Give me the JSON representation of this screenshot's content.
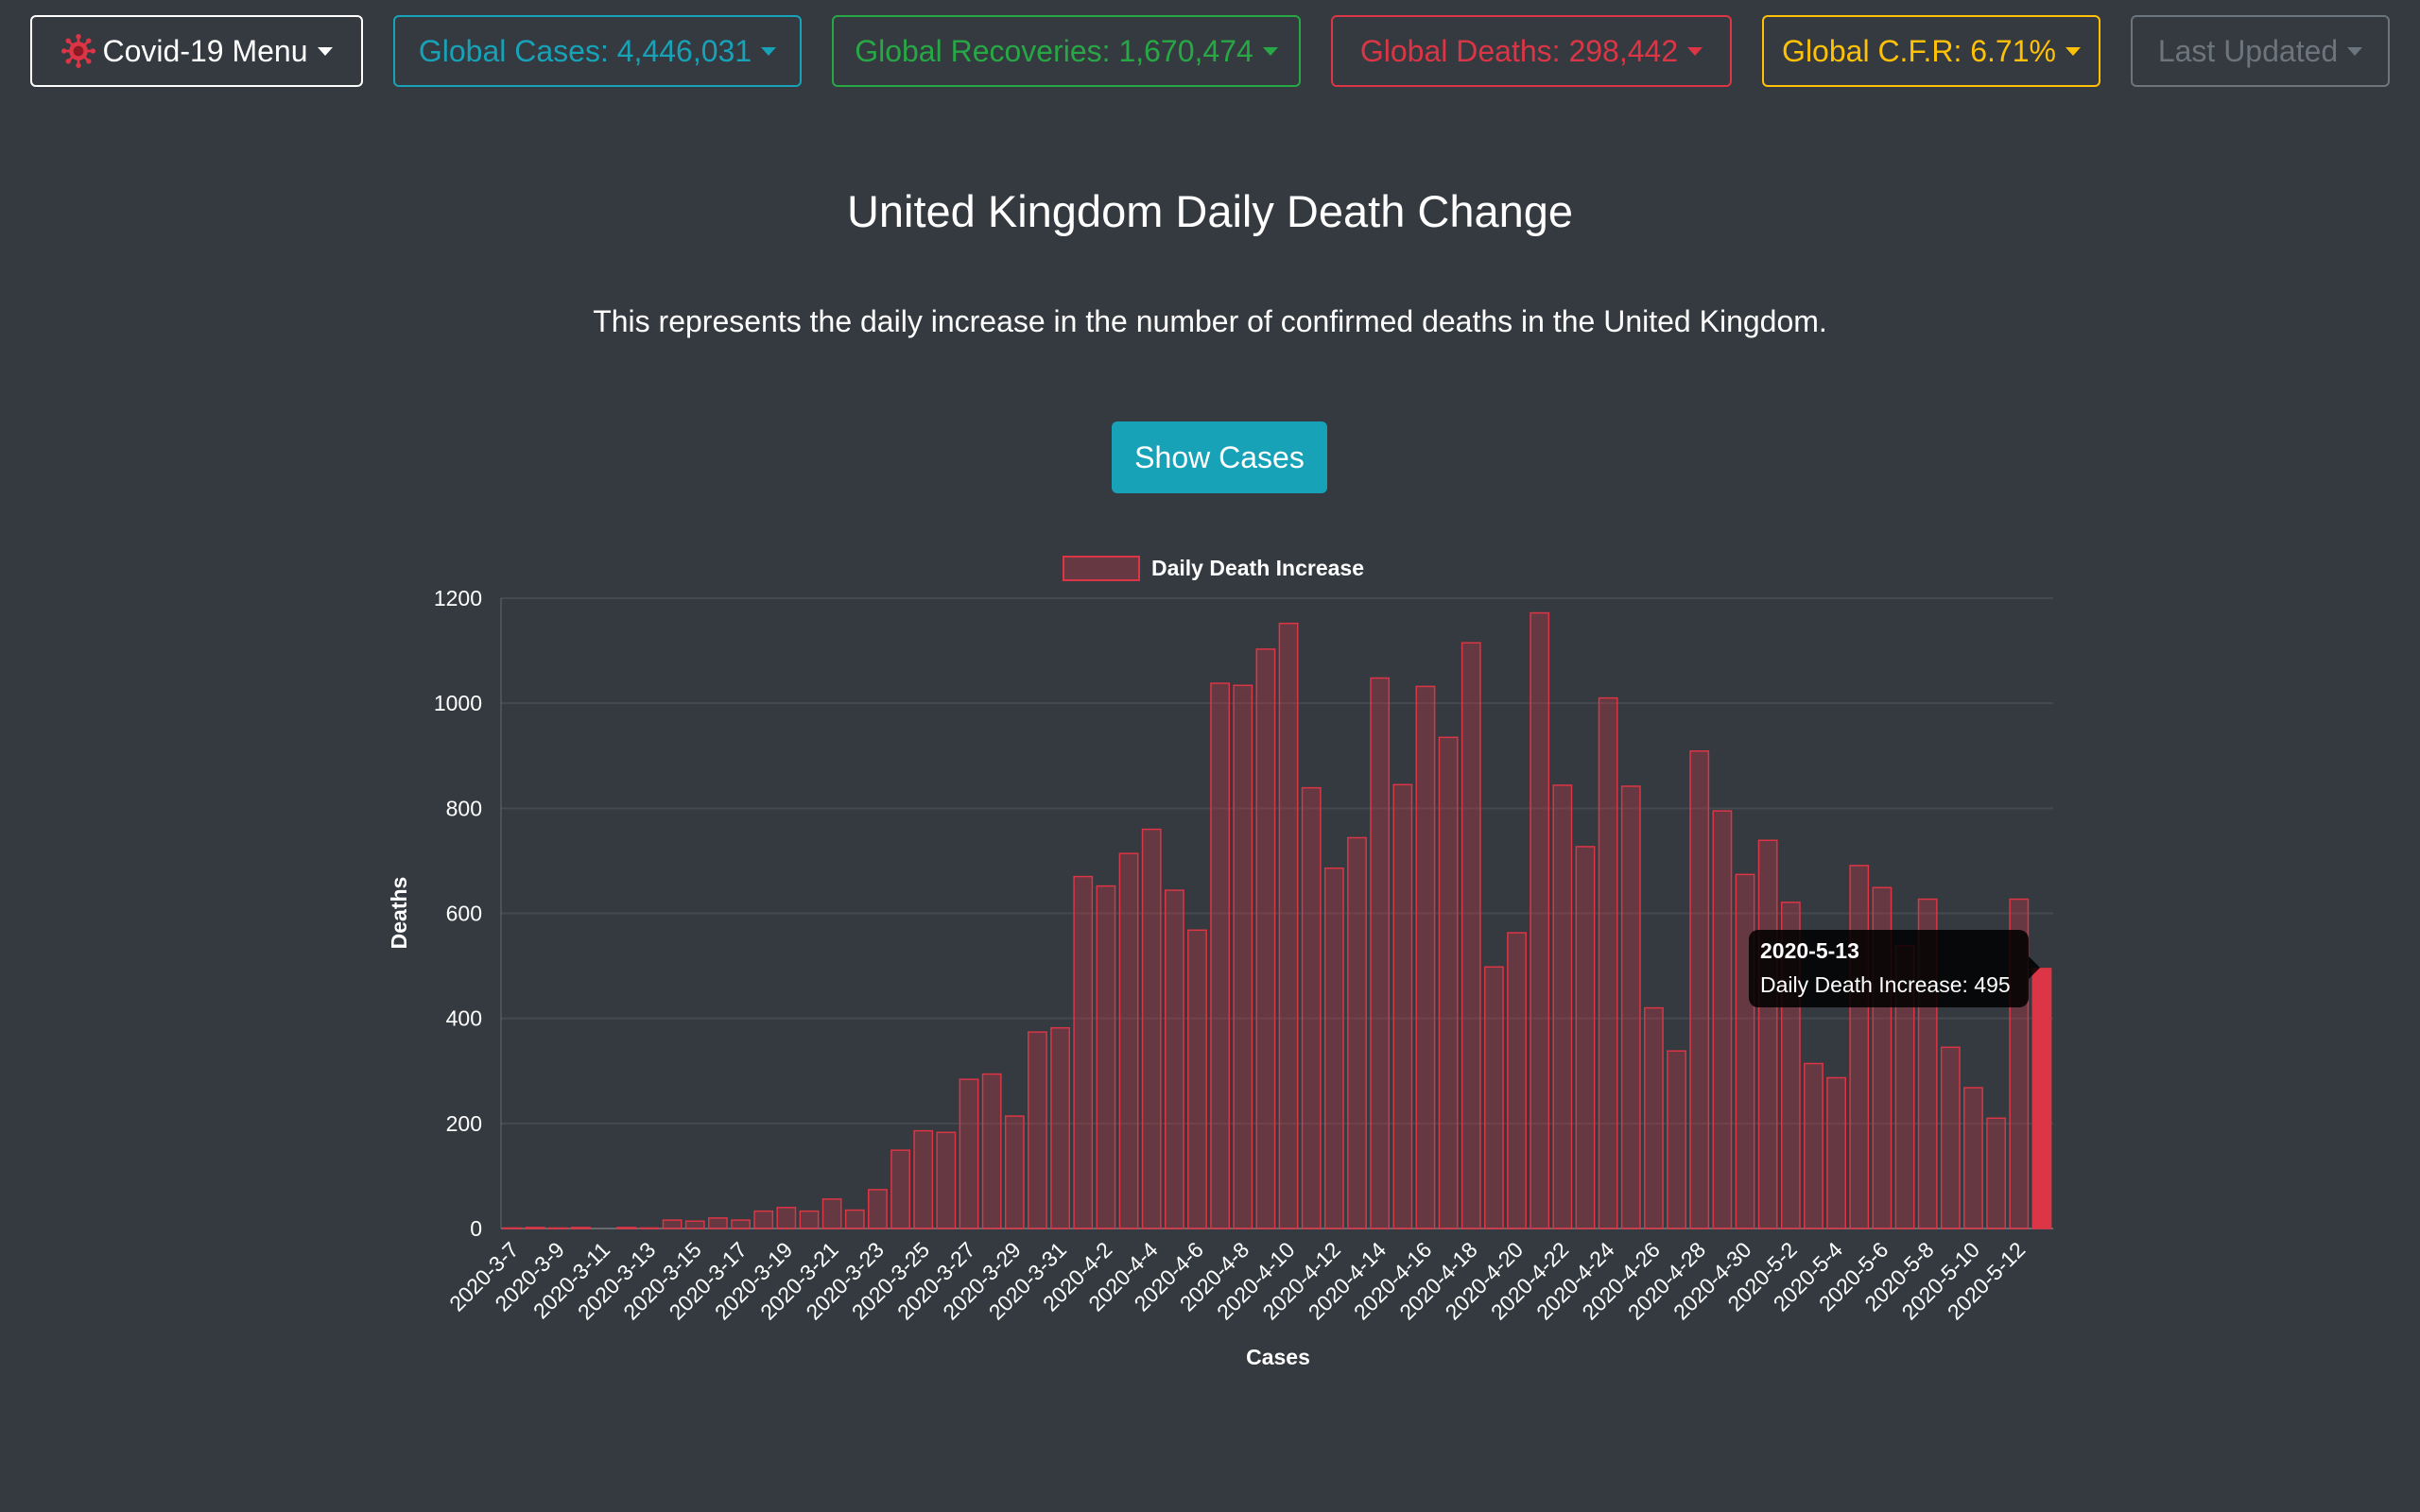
{
  "nav": {
    "menu": {
      "label": "Covid-19 Menu",
      "color": "#ffffff"
    },
    "cases": {
      "label": "Global Cases: 4,446,031",
      "color": "#17a2b8"
    },
    "recoveries": {
      "label": "Global Recoveries: 1,670,474",
      "color": "#28a745"
    },
    "deaths": {
      "label": "Global Deaths: 298,442",
      "color": "#dc3545"
    },
    "cfr": {
      "label": "Global C.F.R: 6.71%",
      "color": "#ffc107"
    },
    "updated": {
      "label": "Last Updated",
      "color": "#6c757d"
    }
  },
  "page": {
    "title": "United Kingdom Daily Death Change",
    "subtitle": "This represents the daily increase in the number of confirmed deaths in the United Kingdom.",
    "show_cases_label": "Show Cases"
  },
  "tooltip": {
    "title": "2020-5-13",
    "series_label": "Daily Death Increase",
    "value": "495"
  },
  "chart_data": {
    "type": "bar",
    "title": "",
    "xlabel": "Cases",
    "ylabel": "Deaths",
    "ylim": [
      0,
      1200
    ],
    "yticks": [
      0,
      200,
      400,
      600,
      800,
      1000,
      1200
    ],
    "grid": true,
    "legend": "top-center",
    "bar_color": "#dc3545",
    "highlight_category": "2020-5-13",
    "categories": [
      "2020-3-7",
      "2020-3-8",
      "2020-3-9",
      "2020-3-10",
      "2020-3-11",
      "2020-3-12",
      "2020-3-13",
      "2020-3-14",
      "2020-3-15",
      "2020-3-16",
      "2020-3-17",
      "2020-3-18",
      "2020-3-19",
      "2020-3-20",
      "2020-3-21",
      "2020-3-22",
      "2020-3-23",
      "2020-3-24",
      "2020-3-25",
      "2020-3-26",
      "2020-3-27",
      "2020-3-28",
      "2020-3-29",
      "2020-3-30",
      "2020-3-31",
      "2020-4-1",
      "2020-4-2",
      "2020-4-3",
      "2020-4-4",
      "2020-4-5",
      "2020-4-6",
      "2020-4-7",
      "2020-4-8",
      "2020-4-9",
      "2020-4-10",
      "2020-4-11",
      "2020-4-12",
      "2020-4-13",
      "2020-4-14",
      "2020-4-15",
      "2020-4-16",
      "2020-4-17",
      "2020-4-18",
      "2020-4-19",
      "2020-4-20",
      "2020-4-21",
      "2020-4-22",
      "2020-4-23",
      "2020-4-24",
      "2020-4-25",
      "2020-4-26",
      "2020-4-27",
      "2020-4-28",
      "2020-4-29",
      "2020-4-30",
      "2020-5-1",
      "2020-5-2",
      "2020-5-3",
      "2020-5-4",
      "2020-5-5",
      "2020-5-6",
      "2020-5-7",
      "2020-5-8",
      "2020-5-9",
      "2020-5-10",
      "2020-5-11",
      "2020-5-12",
      "2020-5-13"
    ],
    "tick_labels": [
      "2020-3-7",
      "2020-3-9",
      "2020-3-11",
      "2020-3-13",
      "2020-3-15",
      "2020-3-17",
      "2020-3-19",
      "2020-3-21",
      "2020-3-23",
      "2020-3-25",
      "2020-3-27",
      "2020-3-29",
      "2020-3-31",
      "2020-4-2",
      "2020-4-4",
      "2020-4-6",
      "2020-4-8",
      "2020-4-10",
      "2020-4-12",
      "2020-4-14",
      "2020-4-16",
      "2020-4-18",
      "2020-4-20",
      "2020-4-22",
      "2020-4-24",
      "2020-4-26",
      "2020-4-28",
      "2020-4-30",
      "2020-5-2",
      "2020-5-4",
      "2020-5-6",
      "2020-5-8",
      "2020-5-10",
      "2020-5-12"
    ],
    "series": [
      {
        "name": "Daily Death Increase",
        "values": [
          1,
          2,
          1,
          2,
          0,
          2,
          1,
          16,
          14,
          20,
          16,
          33,
          40,
          33,
          56,
          35,
          74,
          149,
          186,
          183,
          284,
          294,
          214,
          374,
          382,
          670,
          652,
          714,
          760,
          644,
          568,
          1038,
          1034,
          1103,
          1152,
          839,
          686,
          744,
          1048,
          845,
          1032,
          935,
          1115,
          498,
          563,
          1172,
          844,
          727,
          1010,
          842,
          420,
          338,
          909,
          795,
          674,
          739,
          621,
          314,
          287,
          691,
          649,
          538,
          627,
          345,
          268,
          210,
          627,
          495
        ]
      }
    ]
  }
}
